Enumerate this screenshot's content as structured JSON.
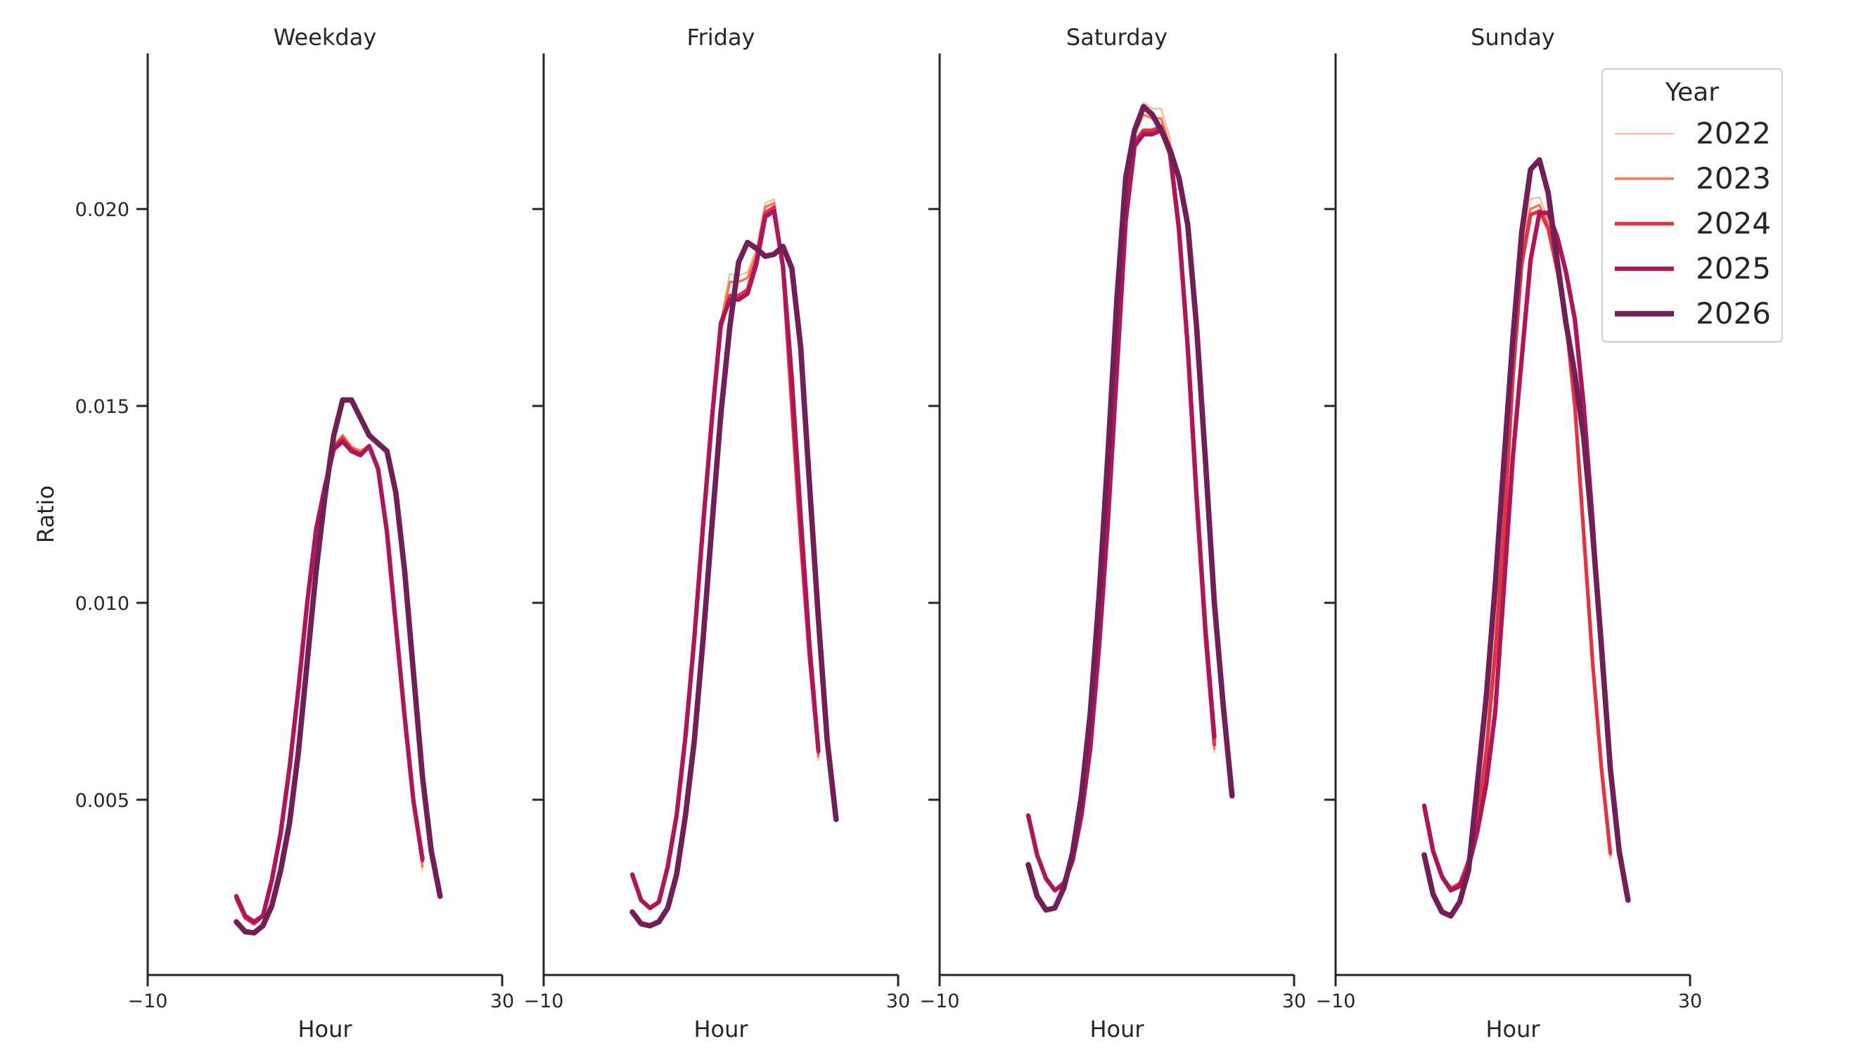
{
  "chart_data": {
    "type": "line",
    "panels": [
      {
        "title": "Weekday",
        "x": [
          0,
          1,
          2,
          3,
          4,
          5,
          6,
          7,
          8,
          9,
          10,
          11,
          12,
          13,
          14,
          15,
          16,
          17,
          18,
          19,
          20,
          21,
          22,
          23
        ],
        "series": [
          {
            "name": "2022",
            "values": [
              0.00245,
              0.002,
              0.00185,
              0.00205,
              0.00295,
              0.00415,
              0.0058,
              0.0078,
              0.01,
              0.0119,
              0.01305,
              0.014,
              0.01428,
              0.01398,
              0.01388,
              0.014,
              0.01348,
              0.0119,
              0.0095,
              0.0071,
              0.0049,
              0.0032,
              null,
              null
            ]
          },
          {
            "name": "2023",
            "values": [
              0.00245,
              0.002,
              0.00185,
              0.00205,
              0.00295,
              0.00415,
              0.0058,
              0.0078,
              0.01,
              0.0119,
              0.01305,
              0.014,
              0.01425,
              0.01395,
              0.01385,
              0.01398,
              0.01345,
              0.01188,
              0.0095,
              0.0071,
              0.0049,
              0.0033,
              null,
              null
            ]
          },
          {
            "name": "2024",
            "values": [
              0.0025,
              0.002,
              0.00185,
              0.00205,
              0.00295,
              0.00415,
              0.0058,
              0.0078,
              0.01,
              0.0119,
              0.013,
              0.01395,
              0.01418,
              0.0139,
              0.01378,
              0.01395,
              0.0134,
              0.01185,
              0.00948,
              0.0071,
              0.00495,
              0.00345,
              null,
              null
            ]
          },
          {
            "name": "2025",
            "values": [
              0.00255,
              0.00205,
              0.0019,
              0.00205,
              0.00295,
              0.00415,
              0.0058,
              0.0078,
              0.01,
              0.01185,
              0.01295,
              0.0139,
              0.0141,
              0.01385,
              0.01375,
              0.01398,
              0.0134,
              0.0118,
              0.00945,
              0.0071,
              0.00495,
              0.0035,
              null,
              null
            ]
          },
          {
            "name": "2026",
            "values": [
              0.0019,
              0.00165,
              0.00162,
              0.0018,
              0.0023,
              0.0032,
              0.0044,
              0.0062,
              0.0085,
              0.0108,
              0.0127,
              0.01425,
              0.01515,
              0.01515,
              0.0147,
              0.01425,
              0.01405,
              0.01385,
              0.0128,
              0.0108,
              0.0082,
              0.0056,
              0.0037,
              0.00255
            ]
          }
        ]
      },
      {
        "title": "Friday",
        "x": [
          0,
          1,
          2,
          3,
          4,
          5,
          6,
          7,
          8,
          9,
          10,
          11,
          12,
          13,
          14,
          15,
          16,
          17,
          18,
          19,
          20,
          21,
          22,
          23
        ],
        "series": [
          {
            "name": "2022",
            "values": [
              0.0031,
              0.00245,
              0.00225,
              0.0024,
              0.0033,
              0.0046,
              0.0066,
              0.0091,
              0.012,
              0.0148,
              0.0172,
              0.01835,
              0.0183,
              0.0184,
              0.019,
              0.02015,
              0.02025,
              0.0186,
              0.0148,
              0.0115,
              0.0084,
              0.006,
              null,
              null
            ]
          },
          {
            "name": "2023",
            "values": [
              0.0031,
              0.00245,
              0.00225,
              0.0024,
              0.0033,
              0.0046,
              0.0066,
              0.0091,
              0.012,
              0.0148,
              0.0171,
              0.01815,
              0.01815,
              0.01825,
              0.01885,
              0.02005,
              0.02015,
              0.01855,
              0.0149,
              0.01155,
              0.0085,
              0.0061,
              null,
              null
            ]
          },
          {
            "name": "2024",
            "values": [
              0.0031,
              0.00245,
              0.00225,
              0.0024,
              0.0033,
              0.0046,
              0.0066,
              0.0091,
              0.012,
              0.01475,
              0.017,
              0.0178,
              0.0178,
              0.01795,
              0.0187,
              0.0199,
              0.02005,
              0.0185,
              0.015,
              0.0116,
              0.0086,
              0.0062,
              null,
              null
            ]
          },
          {
            "name": "2025",
            "values": [
              0.0031,
              0.00245,
              0.00225,
              0.0024,
              0.0033,
              0.0046,
              0.0066,
              0.0091,
              0.012,
              0.0147,
              0.0171,
              0.0177,
              0.0177,
              0.01785,
              0.0186,
              0.0198,
              0.01995,
              0.01855,
              0.0157,
              0.0122,
              0.0089,
              0.00625,
              null,
              null
            ]
          },
          {
            "name": "2026",
            "values": [
              0.00215,
              0.00185,
              0.0018,
              0.0019,
              0.00225,
              0.0031,
              0.0046,
              0.0065,
              0.0091,
              0.012,
              0.0148,
              0.017,
              0.01865,
              0.01915,
              0.019,
              0.0188,
              0.01885,
              0.01905,
              0.0185,
              0.0165,
              0.013,
              0.0096,
              0.0065,
              0.0045
            ]
          }
        ]
      },
      {
        "title": "Saturday",
        "x": [
          0,
          1,
          2,
          3,
          4,
          5,
          6,
          7,
          8,
          9,
          10,
          11,
          12,
          13,
          14,
          15,
          16,
          17,
          18,
          19,
          20,
          21,
          22,
          23
        ],
        "series": [
          {
            "name": "2022",
            "values": [
              0.0046,
              0.0036,
              0.003,
              0.0027,
              0.0029,
              0.0036,
              0.0048,
              0.0066,
              0.0093,
              0.0126,
              0.0164,
              0.0202,
              0.022,
              0.0227,
              0.02255,
              0.02255,
              0.0218,
              0.0198,
              0.0162,
              0.0123,
              0.0089,
              0.0062,
              null,
              null
            ]
          },
          {
            "name": "2023",
            "values": [
              0.0046,
              0.0036,
              0.003,
              0.0027,
              0.0029,
              0.0036,
              0.0048,
              0.0066,
              0.0093,
              0.01255,
              0.0163,
              0.0201,
              0.0219,
              0.0224,
              0.0223,
              0.0223,
              0.0216,
              0.01965,
              0.01625,
              0.0124,
              0.009,
              0.0063,
              null,
              null
            ]
          },
          {
            "name": "2024",
            "values": [
              0.0046,
              0.0036,
              0.003,
              0.0027,
              0.0029,
              0.00355,
              0.00475,
              0.0065,
              0.0092,
              0.0124,
              0.0161,
              0.0199,
              0.0217,
              0.022,
              0.022,
              0.0221,
              0.0215,
              0.0196,
              0.01635,
              0.0125,
              0.0091,
              0.0064,
              null,
              null
            ]
          },
          {
            "name": "2025",
            "values": [
              0.0046,
              0.0036,
              0.003,
              0.0027,
              0.00285,
              0.00345,
              0.0046,
              0.0063,
              0.0089,
              0.0121,
              0.0159,
              0.0197,
              0.0216,
              0.0219,
              0.0219,
              0.022,
              0.0214,
              0.0195,
              0.0165,
              0.0127,
              0.0093,
              0.0066,
              null,
              null
            ]
          },
          {
            "name": "2026",
            "values": [
              0.00335,
              0.00255,
              0.0022,
              0.00225,
              0.00275,
              0.00365,
              0.0051,
              0.0072,
              0.0102,
              0.0138,
              0.0177,
              0.0208,
              0.022,
              0.0226,
              0.0224,
              0.022,
              0.0215,
              0.0208,
              0.0196,
              0.017,
              0.0136,
              0.01,
              0.0074,
              0.0051
            ]
          }
        ]
      },
      {
        "title": "Sunday",
        "x": [
          0,
          1,
          2,
          3,
          4,
          5,
          6,
          7,
          8,
          9,
          10,
          11,
          12,
          13,
          14,
          15,
          16,
          17,
          18,
          19,
          20,
          21,
          22,
          23
        ],
        "series": [
          {
            "name": "2022",
            "values": [
              0.0048,
              0.0037,
              0.00305,
              0.00275,
              0.0029,
              0.0035,
              0.0046,
              0.0064,
              0.009,
              0.0122,
              0.0161,
              0.019,
              0.02025,
              0.0203,
              0.01975,
              0.0186,
              0.0172,
              0.0149,
              0.0116,
              0.0083,
              0.0056,
              0.0035,
              null,
              null
            ]
          },
          {
            "name": "2023",
            "values": [
              0.0048,
              0.0037,
              0.00305,
              0.00275,
              0.0029,
              0.0035,
              0.0046,
              0.0064,
              0.009,
              0.01215,
              0.016,
              0.0188,
              0.02,
              0.0201,
              0.0196,
              0.0185,
              0.01715,
              0.0149,
              0.01165,
              0.0084,
              0.0057,
              0.0036,
              null,
              null
            ]
          },
          {
            "name": "2024",
            "values": [
              0.0048,
              0.0037,
              0.00305,
              0.00275,
              0.00285,
              0.00345,
              0.0045,
              0.0062,
              0.0087,
              0.0118,
              0.0157,
              0.0186,
              0.01985,
              0.01995,
              0.0195,
              0.01845,
              0.01715,
              0.015,
              0.01175,
              0.0085,
              0.0058,
              0.00365,
              null,
              null
            ]
          },
          {
            "name": "2025",
            "values": [
              0.00485,
              0.0037,
              0.00305,
              0.0027,
              0.0028,
              0.0033,
              0.0042,
              0.0054,
              0.0072,
              0.0104,
              0.0137,
              0.0162,
              0.0187,
              0.0199,
              0.0199,
              0.0193,
              0.0184,
              0.0172,
              0.015,
              0.0121,
              0.0087,
              0.0058,
              0.0036,
              null
            ]
          },
          {
            "name": "2026",
            "values": [
              0.0036,
              0.0026,
              0.00215,
              0.00205,
              0.0024,
              0.0032,
              0.0054,
              0.0076,
              0.0104,
              0.0136,
              0.0167,
              0.0194,
              0.021,
              0.02125,
              0.0204,
              0.0187,
              0.0171,
              0.0158,
              0.0142,
              0.0118,
              0.0089,
              0.0058,
              0.0037,
              0.00245
            ]
          }
        ]
      }
    ],
    "xlabel": "Hour",
    "ylabel": "Ratio",
    "xlim": [
      -10,
      30
    ],
    "ylim": [
      0.00055,
      0.02395
    ],
    "xticks": [
      -10,
      30
    ],
    "xtick_labels": [
      "−10",
      "30"
    ],
    "yticks": [
      0.005,
      0.01,
      0.015,
      0.02
    ],
    "ytick_labels": [
      "0.005",
      "0.010",
      "0.015",
      "0.020"
    ],
    "grid": false,
    "legend": {
      "title": "Year",
      "placement": "top-right",
      "entries": [
        "2022",
        "2023",
        "2024",
        "2025",
        "2026"
      ]
    },
    "series_colors": {
      "2022": "#f6b48f",
      "2023": "#f37651",
      "2024": "#e13342",
      "2025": "#ad1759",
      "2026": "#701f57"
    },
    "series_widths": {
      "2022": 1.2,
      "2023": 2.0,
      "2024": 3.0,
      "2025": 3.6,
      "2026": 4.4
    }
  }
}
